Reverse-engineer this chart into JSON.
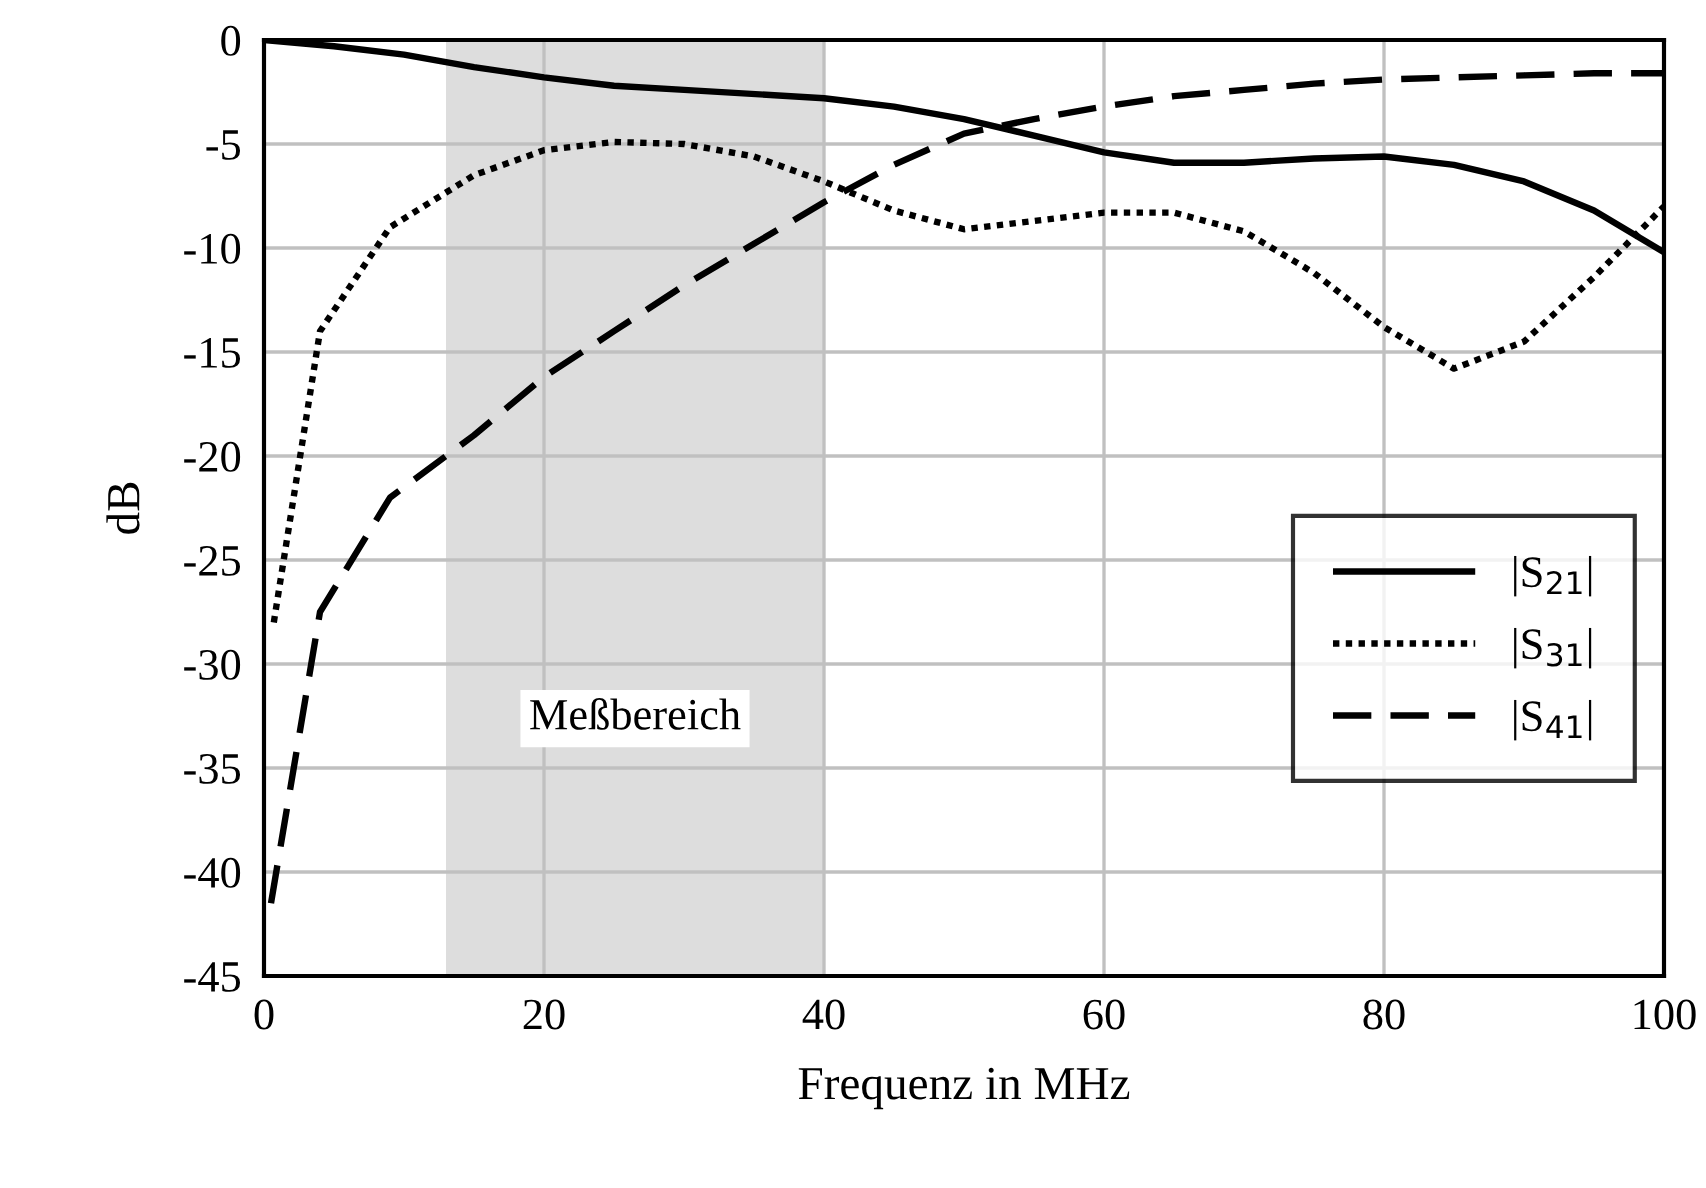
{
  "chart_data": {
    "type": "line",
    "xlabel": "Frequenz in MHz",
    "ylabel": "dB",
    "xlim": [
      0,
      100
    ],
    "xticks": [
      0,
      20,
      40,
      60,
      80,
      100
    ],
    "ylim": [
      -45,
      0
    ],
    "yticks": [
      -45,
      -40,
      -35,
      -30,
      -25,
      -20,
      -15,
      -10,
      -5,
      0
    ],
    "grid": true,
    "legend": "right",
    "marker": "none",
    "bands": [
      {
        "axis": "x",
        "from": 13,
        "to": 40,
        "label": "Meßbereich",
        "color": "#dddddd"
      }
    ],
    "series": [
      {
        "name": "|S$_{21}$|",
        "color": "#000000",
        "line_style": "solid",
        "x": [
          0,
          5,
          10,
          15,
          20,
          25,
          30,
          40,
          45,
          50,
          55,
          60,
          65,
          70,
          75,
          80,
          85,
          90,
          95,
          100
        ],
        "values": [
          0,
          -0.3,
          -0.7,
          -1.3,
          -1.8,
          -2.2,
          -2.4,
          -2.8,
          -3.2,
          -3.8,
          -4.6,
          -5.4,
          -5.9,
          -5.9,
          -5.7,
          -5.6,
          -6,
          -6.8,
          -8.2,
          -10.2
        ]
      },
      {
        "name": "|S$_{31}$|",
        "color": "#000000",
        "line_style": "dotted",
        "x": [
          0.7,
          4,
          9,
          15,
          20,
          25,
          30,
          35,
          40,
          45,
          50,
          55,
          60,
          65,
          70,
          75,
          80,
          85,
          90,
          95,
          100
        ],
        "values": [
          -28,
          -14,
          -9,
          -6.5,
          -5.3,
          -4.9,
          -5,
          -5.6,
          -6.8,
          -8.2,
          -9.1,
          -8.7,
          -8.3,
          -8.3,
          -9.2,
          -11.2,
          -13.8,
          -15.8,
          -14.5,
          -11.4,
          -8
        ]
      },
      {
        "name": "|S$_{41}$|",
        "color": "#000000",
        "line_style": "dashed",
        "x": [
          0.5,
          4,
          9,
          15,
          20,
          25,
          30,
          35,
          40,
          45,
          50,
          55,
          60,
          65,
          70,
          75,
          80,
          85,
          90,
          95,
          100
        ],
        "values": [
          -41.5,
          -27.5,
          -22,
          -19,
          -16.2,
          -14,
          -11.8,
          -9.8,
          -7.8,
          -6,
          -4.5,
          -3.8,
          -3.2,
          -2.7,
          -2.4,
          -2.1,
          -1.9,
          -1.8,
          -1.7,
          -1.6,
          -1.6
        ]
      }
    ]
  }
}
